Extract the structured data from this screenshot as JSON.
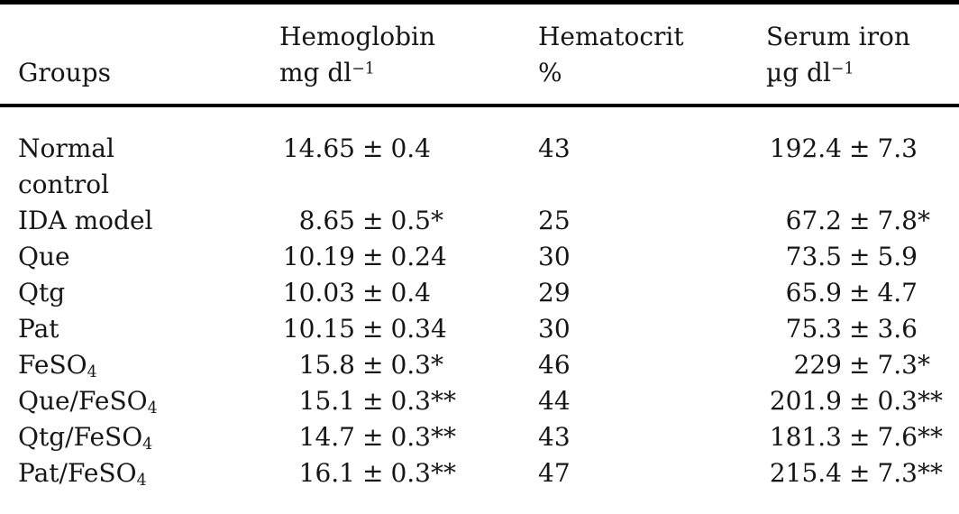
{
  "page": {
    "background": "#ffffff",
    "text_color": "#161616",
    "rule_color": "#000000"
  },
  "symbols": {
    "plus_minus": "±"
  },
  "table": {
    "header": {
      "groups": {
        "line2": "Groups"
      },
      "hemoglobin": {
        "line1": "Hemoglobin",
        "unit_base": "mg dl",
        "unit_sup": "−1"
      },
      "hematocrit": {
        "line1": "Hematocrit",
        "unit_base": "%",
        "unit_sup": ""
      },
      "serum_iron": {
        "line1": "Serum iron",
        "unit_base": "µg dl",
        "unit_sup": "−1"
      }
    },
    "rows": [
      {
        "group": "Normal",
        "group_sub": "",
        "group_line2": "control",
        "hb_val": "14.65",
        "hb_err": "0.4",
        "hb_mark": "",
        "hct": "43",
        "fe_val": "192.4",
        "fe_err": "7.3",
        "fe_mark": ""
      },
      {
        "group": "IDA model",
        "group_sub": "",
        "group_line2": "",
        "hb_val": "8.65",
        "hb_err": "0.5",
        "hb_mark": "*",
        "hct": "25",
        "fe_val": "67.2",
        "fe_err": "7.8",
        "fe_mark": "*"
      },
      {
        "group": "Que",
        "group_sub": "",
        "group_line2": "",
        "hb_val": "10.19",
        "hb_err": "0.24",
        "hb_mark": "",
        "hct": "30",
        "fe_val": "73.5",
        "fe_err": "5.9",
        "fe_mark": ""
      },
      {
        "group": "Qtg",
        "group_sub": "",
        "group_line2": "",
        "hb_val": "10.03",
        "hb_err": "0.4",
        "hb_mark": "",
        "hct": "29",
        "fe_val": "65.9",
        "fe_err": "4.7",
        "fe_mark": ""
      },
      {
        "group": "Pat",
        "group_sub": "",
        "group_line2": "",
        "hb_val": "10.15",
        "hb_err": "0.34",
        "hb_mark": "",
        "hct": "30",
        "fe_val": "75.3",
        "fe_err": "3.6",
        "fe_mark": ""
      },
      {
        "group": "FeSO",
        "group_sub": "4",
        "group_line2": "",
        "hb_val": "15.8",
        "hb_err": "0.3",
        "hb_mark": "*",
        "hct": "46",
        "fe_val": "229",
        "fe_err": "7.3",
        "fe_mark": "*"
      },
      {
        "group": "Que/FeSO",
        "group_sub": "4",
        "group_line2": "",
        "hb_val": "15.1",
        "hb_err": "0.3",
        "hb_mark": "**",
        "hct": "44",
        "fe_val": "201.9",
        "fe_err": "0.3",
        "fe_mark": "**"
      },
      {
        "group": "Qtg/FeSO",
        "group_sub": "4",
        "group_line2": "",
        "hb_val": "14.7",
        "hb_err": "0.3",
        "hb_mark": "**",
        "hct": "43",
        "fe_val": "181.3",
        "fe_err": "7.6",
        "fe_mark": "**"
      },
      {
        "group": "Pat/FeSO",
        "group_sub": "4",
        "group_line2": "",
        "hb_val": "16.1",
        "hb_err": "0.3",
        "hb_mark": "**",
        "hct": "47",
        "fe_val": "215.4",
        "fe_err": "7.3",
        "fe_mark": "**"
      }
    ]
  }
}
